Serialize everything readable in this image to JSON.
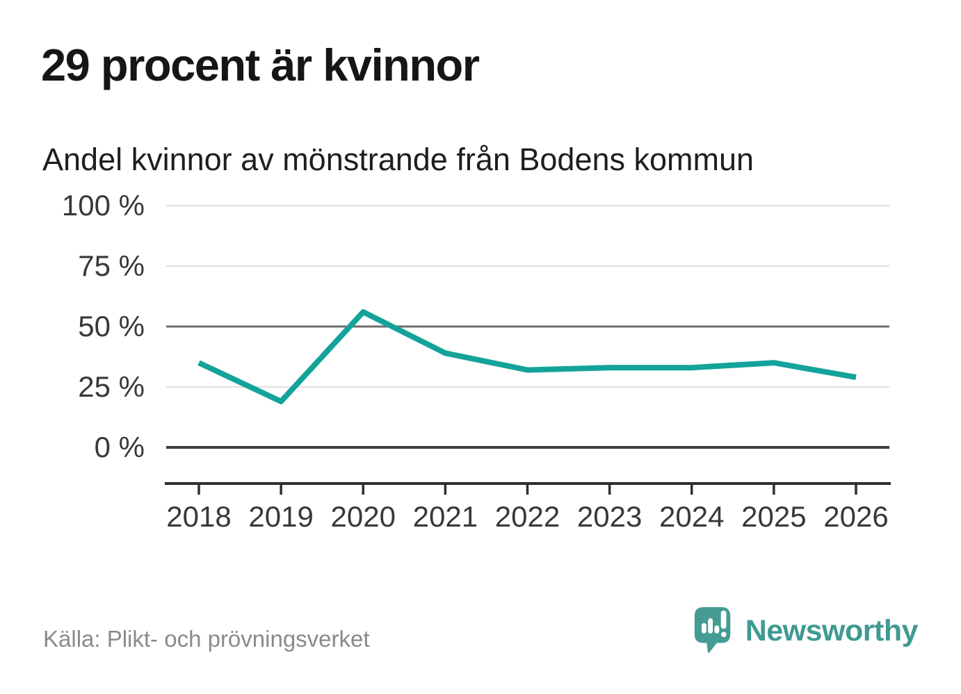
{
  "headline": "29 procent är kvinnor",
  "source": "Källa: Plikt- och prövningsverket",
  "brand": {
    "name": "Newsworthy",
    "color": "#3f9a92",
    "icon": "speech-bubble-with-bar-chart-and-exclamation"
  },
  "colors": {
    "line": "#14a39a",
    "grid_light": "#e2e2e2",
    "grid_mid": "#6e6e6e",
    "grid_zero": "#3d3d3d",
    "axis": "#2f2f2f",
    "tick_text": "#383838",
    "headline_text": "#161616",
    "subtitle_text": "#1e1e1e",
    "source_text": "#8a8a8a"
  },
  "chart_data": {
    "type": "line",
    "title": "Andel kvinnor av mönstrande från Bodens kommun",
    "x": [
      2018,
      2019,
      2020,
      2021,
      2022,
      2023,
      2024,
      2025,
      2026
    ],
    "series": [
      {
        "name": "Andel kvinnor av mönstrande",
        "values": [
          35,
          19,
          56,
          39,
          32,
          33,
          33,
          35,
          29
        ]
      }
    ],
    "unit": "%",
    "ylim": [
      0,
      100
    ],
    "yticks": [
      100,
      75,
      50,
      25,
      0
    ],
    "ytick_format": "{v} %",
    "grid": "horizontal",
    "emphasized_gridlines": [
      50,
      0
    ],
    "legend": "none",
    "xlabel": "",
    "ylabel": ""
  }
}
